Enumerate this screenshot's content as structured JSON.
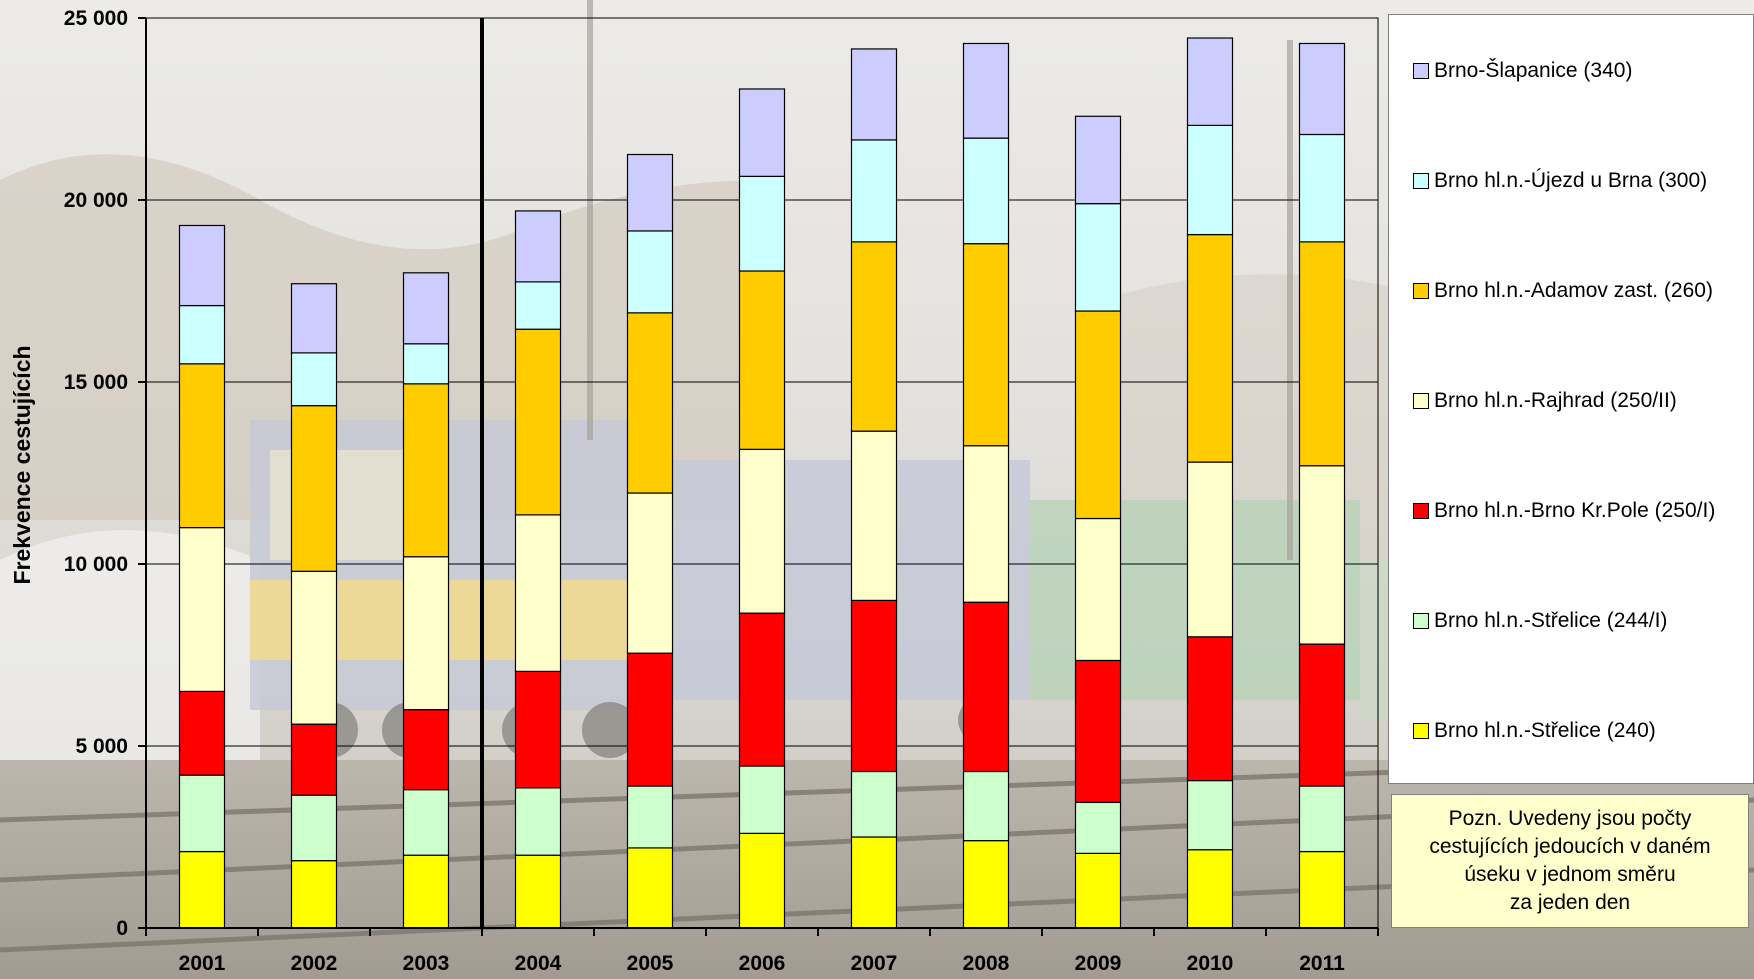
{
  "chart_data": {
    "type": "bar",
    "stacked": true,
    "title": "",
    "xlabel": "",
    "ylabel": "Frekvence cestujících",
    "ylim": [
      0,
      25000
    ],
    "yticks": [
      0,
      5000,
      10000,
      15000,
      20000,
      25000
    ],
    "ytick_labels": [
      "0",
      "5 000",
      "10 000",
      "15 000",
      "20 000",
      "25 000"
    ],
    "grid": true,
    "legend_position": "right",
    "categories": [
      "2001",
      "2002",
      "2003",
      "2004",
      "2005",
      "2006",
      "2007",
      "2008",
      "2009",
      "2010",
      "2011"
    ],
    "series": [
      {
        "name": "Brno hl.n.-Střelice (240)",
        "color": "#ffff00",
        "values": [
          2100,
          1850,
          2000,
          2000,
          2200,
          2600,
          2500,
          2400,
          2050,
          2150,
          2100
        ]
      },
      {
        "name": "Brno hl.n.-Střelice (244/I)",
        "color": "#ccffcc",
        "values": [
          2100,
          1800,
          1800,
          1850,
          1700,
          1850,
          1800,
          1900,
          1400,
          1900,
          1800
        ]
      },
      {
        "name": "Brno hl.n.-Brno Kr.Pole (250/I)",
        "color": "#ff0000",
        "values": [
          2300,
          1950,
          2200,
          3200,
          3650,
          4200,
          4700,
          4650,
          3900,
          3950,
          3900
        ]
      },
      {
        "name": "Brno hl.n.-Rajhrad (250/II)",
        "color": "#ffffcc",
        "values": [
          4500,
          4200,
          4200,
          4300,
          4400,
          4500,
          4650,
          4300,
          3900,
          4800,
          4900
        ]
      },
      {
        "name": "Brno hl.n.-Adamov zast. (260)",
        "color": "#ffcc00",
        "values": [
          4500,
          4550,
          4750,
          5100,
          4950,
          4900,
          5200,
          5550,
          5700,
          6250,
          6150
        ]
      },
      {
        "name": "Brno hl.n.-Újezd u Brna (300)",
        "color": "#ccffff",
        "values": [
          1600,
          1450,
          1100,
          1300,
          2250,
          2600,
          2800,
          2900,
          2950,
          3000,
          2950
        ]
      },
      {
        "name": "Brno-Šlapanice (340)",
        "color": "#ccccff",
        "values": [
          2200,
          1900,
          1950,
          1950,
          2100,
          2400,
          2500,
          2600,
          2400,
          2400,
          2500
        ]
      }
    ],
    "annotations": [
      "vertical line between 2003 and 2004"
    ]
  },
  "note": {
    "text": "Pozn. Uvedeny jsou počty\ncestujících jedoucích v daném\núseku v jednom směru\nza jeden den"
  },
  "colors": {
    "note_background": "#ffffcc",
    "legend_background": "#ffffff"
  }
}
